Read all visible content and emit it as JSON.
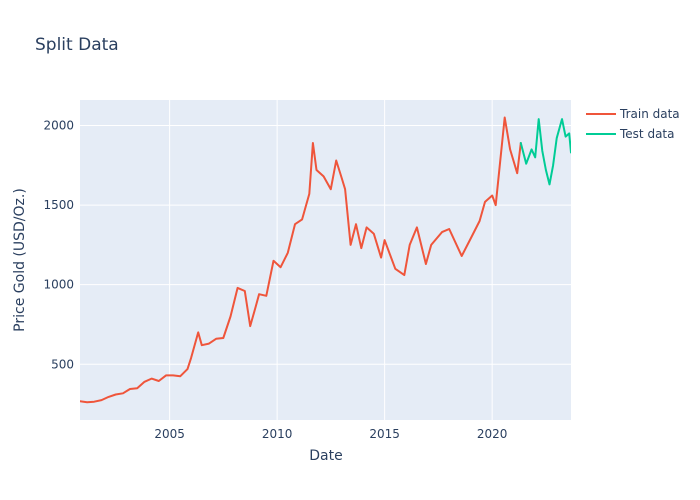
{
  "chart_data": {
    "type": "line",
    "title": "Split Data",
    "xlabel": "Date",
    "ylabel": "Price Gold (USD/Oz.)",
    "x_range": [
      "2000-11-01",
      "2023-09-01"
    ],
    "ylim": [
      150,
      2160
    ],
    "x_ticks": [
      {
        "date": "2005-01-01",
        "label": "2005"
      },
      {
        "date": "2010-01-01",
        "label": "2010"
      },
      {
        "date": "2015-01-01",
        "label": "2015"
      },
      {
        "date": "2020-01-01",
        "label": "2020"
      }
    ],
    "y_ticks": [
      {
        "value": 500,
        "label": "500"
      },
      {
        "value": 1000,
        "label": "1000"
      },
      {
        "value": 1500,
        "label": "1500"
      },
      {
        "value": 2000,
        "label": "2000"
      }
    ],
    "grid": true,
    "legend_position": "top-right",
    "plot_background": "#e5ecf6",
    "series": [
      {
        "name": "Train data",
        "color": "#ef553b",
        "points": [
          [
            "2000-11-01",
            268
          ],
          [
            "2001-03-01",
            262
          ],
          [
            "2001-07-01",
            265
          ],
          [
            "2001-11-01",
            275
          ],
          [
            "2002-03-01",
            295
          ],
          [
            "2002-07-01",
            310
          ],
          [
            "2002-11-01",
            318
          ],
          [
            "2003-03-01",
            345
          ],
          [
            "2003-07-01",
            350
          ],
          [
            "2003-11-01",
            390
          ],
          [
            "2004-03-01",
            410
          ],
          [
            "2004-07-01",
            395
          ],
          [
            "2004-11-01",
            430
          ],
          [
            "2005-03-01",
            430
          ],
          [
            "2005-07-01",
            425
          ],
          [
            "2005-11-01",
            470
          ],
          [
            "2006-01-01",
            540
          ],
          [
            "2006-05-01",
            700
          ],
          [
            "2006-07-01",
            620
          ],
          [
            "2006-11-01",
            630
          ],
          [
            "2007-03-01",
            660
          ],
          [
            "2007-07-01",
            665
          ],
          [
            "2007-11-01",
            800
          ],
          [
            "2008-03-01",
            980
          ],
          [
            "2008-07-01",
            960
          ],
          [
            "2008-10-01",
            740
          ],
          [
            "2009-01-01",
            860
          ],
          [
            "2009-03-01",
            940
          ],
          [
            "2009-07-01",
            930
          ],
          [
            "2009-11-01",
            1150
          ],
          [
            "2010-03-01",
            1110
          ],
          [
            "2010-07-01",
            1200
          ],
          [
            "2010-11-01",
            1380
          ],
          [
            "2011-03-01",
            1410
          ],
          [
            "2011-07-01",
            1570
          ],
          [
            "2011-09-01",
            1890
          ],
          [
            "2011-11-01",
            1720
          ],
          [
            "2012-03-01",
            1680
          ],
          [
            "2012-07-01",
            1600
          ],
          [
            "2012-10-01",
            1780
          ],
          [
            "2013-01-01",
            1670
          ],
          [
            "2013-03-01",
            1600
          ],
          [
            "2013-06-01",
            1250
          ],
          [
            "2013-09-01",
            1380
          ],
          [
            "2013-12-01",
            1230
          ],
          [
            "2014-03-01",
            1360
          ],
          [
            "2014-07-01",
            1320
          ],
          [
            "2014-11-01",
            1170
          ],
          [
            "2015-01-01",
            1280
          ],
          [
            "2015-07-01",
            1100
          ],
          [
            "2015-12-01",
            1060
          ],
          [
            "2016-03-01",
            1250
          ],
          [
            "2016-07-01",
            1360
          ],
          [
            "2016-12-01",
            1130
          ],
          [
            "2017-03-01",
            1250
          ],
          [
            "2017-09-01",
            1330
          ],
          [
            "2018-01-01",
            1350
          ],
          [
            "2018-08-01",
            1180
          ],
          [
            "2019-01-01",
            1290
          ],
          [
            "2019-06-01",
            1400
          ],
          [
            "2019-09-01",
            1520
          ],
          [
            "2020-01-01",
            1560
          ],
          [
            "2020-03-01",
            1500
          ],
          [
            "2020-05-01",
            1720
          ],
          [
            "2020-08-01",
            2050
          ],
          [
            "2020-11-01",
            1850
          ],
          [
            "2021-03-01",
            1700
          ],
          [
            "2021-05-01",
            1890
          ]
        ]
      },
      {
        "name": "Test data",
        "color": "#00cc96",
        "points": [
          [
            "2021-05-01",
            1890
          ],
          [
            "2021-08-01",
            1760
          ],
          [
            "2021-11-01",
            1850
          ],
          [
            "2022-01-01",
            1800
          ],
          [
            "2022-03-01",
            2040
          ],
          [
            "2022-05-01",
            1840
          ],
          [
            "2022-07-01",
            1720
          ],
          [
            "2022-09-01",
            1630
          ],
          [
            "2022-11-01",
            1750
          ],
          [
            "2023-01-01",
            1920
          ],
          [
            "2023-04-01",
            2040
          ],
          [
            "2023-06-01",
            1930
          ],
          [
            "2023-08-01",
            1950
          ],
          [
            "2023-09-01",
            1830
          ]
        ]
      }
    ]
  }
}
